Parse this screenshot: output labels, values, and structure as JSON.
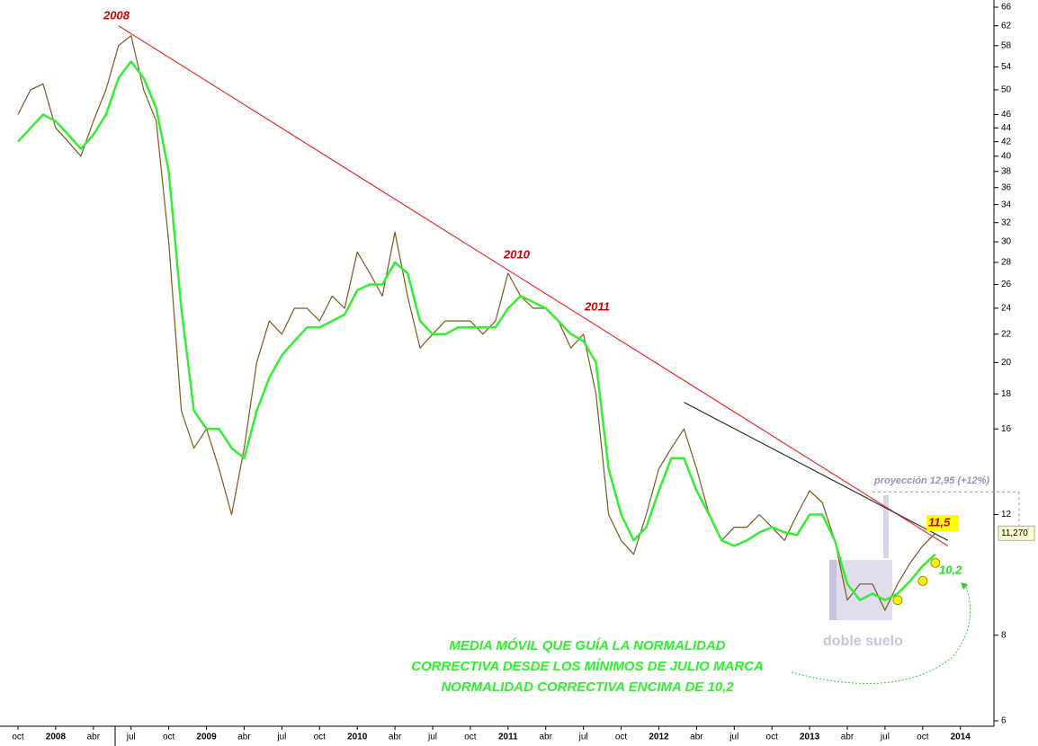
{
  "chart_data": {
    "type": "line",
    "log_scale": true,
    "categories": [
      "oct",
      null,
      null,
      "2008",
      null,
      null,
      "abr",
      null,
      null,
      "jul",
      null,
      null,
      "oct",
      null,
      null,
      "2009",
      null,
      null,
      "abr",
      null,
      null,
      "jul",
      null,
      null,
      "oct",
      null,
      null,
      "2010",
      null,
      null,
      "abr",
      null,
      null,
      "jul",
      null,
      null,
      "oct",
      null,
      null,
      "2011",
      null,
      null,
      "abr",
      null,
      null,
      "jul",
      null,
      null,
      "oct",
      null,
      null,
      "2012",
      null,
      null,
      "abr",
      null,
      null,
      "jul",
      null,
      null,
      "oct",
      null,
      null,
      "2013",
      null,
      null,
      "abr",
      null,
      null,
      "jul",
      null,
      null,
      "oct",
      null,
      null,
      "2014"
    ],
    "series": [
      {
        "color": "#7a5a20",
        "values": [
          46,
          50,
          51,
          44,
          42,
          40,
          45,
          50,
          58,
          60,
          50,
          45,
          30,
          17,
          15,
          16,
          14,
          12,
          15,
          20,
          23,
          22,
          24,
          24,
          23,
          25,
          24,
          29,
          27,
          25,
          31,
          25,
          21,
          22,
          23,
          23,
          23,
          22,
          23,
          27,
          25,
          24,
          24,
          23,
          21,
          22,
          18,
          12,
          11,
          10.5,
          12,
          14,
          15,
          16,
          14,
          12,
          11,
          11.5,
          11.5,
          12,
          11.5,
          11,
          12,
          13,
          12.5,
          11,
          9,
          9.5,
          9.5,
          8.7,
          9.5,
          10.2,
          10.8,
          11.27,
          null,
          null
        ]
      },
      {
        "color": "#33ee33",
        "values": [
          42,
          44,
          46,
          45,
          43,
          41,
          43,
          46,
          52,
          55,
          52,
          47,
          38,
          24,
          17,
          16,
          16,
          15,
          14.5,
          17,
          19,
          20.5,
          21.5,
          22.5,
          22.5,
          23,
          23.5,
          25.5,
          26,
          26,
          28,
          27,
          23,
          22,
          22,
          22.5,
          22.5,
          22.5,
          22.5,
          24,
          25,
          24.5,
          24,
          23,
          22,
          21.5,
          20,
          14,
          12,
          11,
          11.5,
          13,
          14.5,
          14.5,
          13,
          12,
          11,
          10.8,
          11,
          11.3,
          11.5,
          11.3,
          11.2,
          12,
          12,
          11,
          9.5,
          9,
          9.2,
          9,
          9.2,
          9.6,
          10.1,
          10.5,
          null,
          null
        ]
      }
    ],
    "trendlines": [
      {
        "color": "#e83030",
        "values": [
          null,
          null,
          null,
          null,
          null,
          null,
          null,
          null,
          62,
          null,
          null,
          null,
          null,
          null,
          null,
          null,
          null,
          null,
          null,
          null,
          null,
          null,
          null,
          null,
          null,
          null,
          null,
          null,
          null,
          null,
          null,
          null,
          null,
          null,
          null,
          null,
          null,
          null,
          null,
          null,
          null,
          null,
          null,
          null,
          null,
          null,
          null,
          null,
          null,
          null,
          null,
          null,
          null,
          null,
          null,
          null,
          null,
          null,
          null,
          null,
          null,
          null,
          null,
          null,
          null,
          null,
          null,
          null,
          null,
          null,
          null,
          null,
          null,
          null,
          10.8,
          null
        ]
      },
      {
        "color": "#333333",
        "values": [
          null,
          null,
          null,
          null,
          null,
          null,
          null,
          null,
          null,
          null,
          null,
          null,
          null,
          null,
          null,
          null,
          null,
          null,
          null,
          null,
          null,
          null,
          null,
          null,
          null,
          null,
          null,
          null,
          null,
          null,
          null,
          null,
          null,
          null,
          null,
          null,
          null,
          null,
          null,
          null,
          null,
          null,
          null,
          null,
          null,
          null,
          null,
          null,
          null,
          null,
          null,
          null,
          null,
          17.5,
          null,
          null,
          null,
          null,
          null,
          null,
          null,
          null,
          null,
          null,
          null,
          null,
          null,
          null,
          null,
          null,
          null,
          null,
          null,
          null,
          11,
          null
        ]
      }
    ],
    "markers": {
      "color": "#ffee00",
      "values": [
        null,
        null,
        null,
        null,
        null,
        null,
        null,
        null,
        null,
        null,
        null,
        null,
        null,
        null,
        null,
        null,
        null,
        null,
        null,
        null,
        null,
        null,
        null,
        null,
        null,
        null,
        null,
        null,
        null,
        null,
        null,
        null,
        null,
        null,
        null,
        null,
        null,
        null,
        null,
        null,
        null,
        null,
        null,
        null,
        null,
        null,
        null,
        null,
        null,
        null,
        null,
        null,
        null,
        null,
        null,
        null,
        null,
        null,
        null,
        null,
        null,
        null,
        null,
        null,
        null,
        null,
        null,
        null,
        null,
        null,
        9.0,
        null,
        9.6,
        10.2,
        null,
        null
      ]
    },
    "projection": {
      "value": 12.95,
      "label": "proyección 12,95 (+12%)"
    },
    "last_label": "11,270",
    "annotations": [
      "2008",
      "2010",
      "2011",
      "11,5",
      "10,2",
      "doble suelo"
    ],
    "note_lines": [
      "MEDIA MÓVIL QUE GUÍA LA NORMALIDAD",
      "CORRECTIVA DESDE LOS MÍNIMOS DE JULIO MARCA",
      "NORMALIDAD CORRECTIVA ENCIMA DE 10,2"
    ],
    "ylim": [
      6,
      66
    ],
    "yticks": [
      6,
      8,
      12,
      16,
      18,
      20,
      22,
      24,
      26,
      28,
      30,
      32,
      34,
      36,
      38,
      40,
      42,
      44,
      46,
      50,
      54,
      58,
      62,
      66
    ]
  }
}
